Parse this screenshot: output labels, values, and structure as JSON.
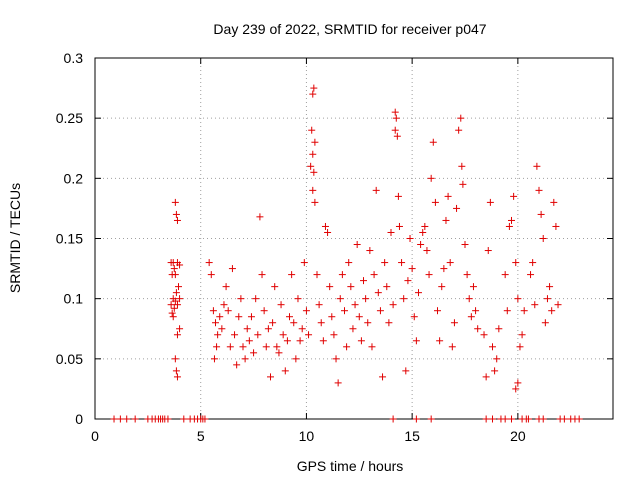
{
  "chart_data": {
    "type": "scatter",
    "title": "Day 239 of 2022, SRMTID for receiver p047",
    "xlabel": "GPS time / hours",
    "ylabel": "SRMTID / TECUs",
    "xlim": [
      0,
      24.5
    ],
    "ylim": [
      0,
      0.3
    ],
    "xticks": [
      0,
      5,
      10,
      15,
      20
    ],
    "xtick_labels": [
      "0",
      "5",
      "10",
      "15",
      "20"
    ],
    "yticks": [
      0,
      0.05,
      0.1,
      0.15,
      0.2,
      0.25,
      0.3
    ],
    "ytick_labels": [
      "0",
      "0.05",
      "0.1",
      "0.15",
      "0.2",
      "0.25",
      "0.3"
    ],
    "grid": true,
    "series": [
      {
        "name": "SRMTID",
        "color": "#e00000",
        "marker": "+",
        "points": [
          [
            0.9,
            0
          ],
          [
            1.2,
            0
          ],
          [
            1.5,
            0
          ],
          [
            1.9,
            0
          ],
          [
            2.5,
            0
          ],
          [
            2.7,
            0
          ],
          [
            2.85,
            0
          ],
          [
            3.0,
            0
          ],
          [
            3.1,
            0
          ],
          [
            3.2,
            0
          ],
          [
            3.3,
            0
          ],
          [
            3.45,
            0
          ],
          [
            3.8,
            0.18
          ],
          [
            3.85,
            0.17
          ],
          [
            3.9,
            0.165
          ],
          [
            3.7,
            0.13
          ],
          [
            3.75,
            0.125
          ],
          [
            3.8,
            0.12
          ],
          [
            3.6,
            0.13
          ],
          [
            3.65,
            0.12
          ],
          [
            3.9,
            0.13
          ],
          [
            4.0,
            0.128
          ],
          [
            3.7,
            0.1
          ],
          [
            3.8,
            0.098
          ],
          [
            3.9,
            0.095
          ],
          [
            3.65,
            0.088
          ],
          [
            3.75,
            0.092
          ],
          [
            3.95,
            0.11
          ],
          [
            3.85,
            0.105
          ],
          [
            4.0,
            0.075
          ],
          [
            3.9,
            0.07
          ],
          [
            3.8,
            0.05
          ],
          [
            3.85,
            0.04
          ],
          [
            3.9,
            0.035
          ],
          [
            3.7,
            0.085
          ],
          [
            4.0,
            0.1
          ],
          [
            3.6,
            0.095
          ],
          [
            4.2,
            0
          ],
          [
            4.5,
            0
          ],
          [
            4.7,
            0
          ],
          [
            4.85,
            0
          ],
          [
            5.0,
            0
          ],
          [
            5.1,
            0
          ],
          [
            5.2,
            0
          ],
          [
            5.4,
            0.13
          ],
          [
            5.5,
            0.12
          ],
          [
            5.6,
            0.09
          ],
          [
            5.7,
            0.08
          ],
          [
            5.8,
            0.07
          ],
          [
            5.9,
            0.085
          ],
          [
            6.0,
            0.075
          ],
          [
            5.75,
            0.06
          ],
          [
            5.65,
            0.05
          ],
          [
            6.1,
            0.095
          ],
          [
            6.2,
            0.11
          ],
          [
            6.3,
            0.09
          ],
          [
            6.4,
            0.06
          ],
          [
            6.5,
            0.125
          ],
          [
            6.6,
            0.07
          ],
          [
            6.7,
            0.045
          ],
          [
            6.8,
            0.085
          ],
          [
            6.9,
            0.1
          ],
          [
            7.0,
            0.06
          ],
          [
            7.1,
            0.05
          ],
          [
            7.2,
            0.075
          ],
          [
            7.3,
            0.065
          ],
          [
            7.4,
            0.085
          ],
          [
            7.5,
            0.055
          ],
          [
            7.6,
            0.1
          ],
          [
            7.7,
            0.07
          ],
          [
            7.8,
            0.168
          ],
          [
            7.9,
            0.12
          ],
          [
            8.0,
            0.09
          ],
          [
            8.1,
            0.06
          ],
          [
            8.2,
            0.075
          ],
          [
            8.3,
            0.035
          ],
          [
            8.4,
            0.08
          ],
          [
            8.5,
            0.11
          ],
          [
            8.6,
            0.06
          ],
          [
            8.7,
            0.055
          ],
          [
            8.8,
            0.095
          ],
          [
            8.9,
            0.07
          ],
          [
            9.0,
            0.04
          ],
          [
            9.1,
            0.065
          ],
          [
            9.2,
            0.085
          ],
          [
            9.3,
            0.12
          ],
          [
            9.4,
            0.08
          ],
          [
            9.5,
            0.05
          ],
          [
            9.6,
            0.1
          ],
          [
            9.7,
            0.065
          ],
          [
            9.8,
            0.075
          ],
          [
            9.9,
            0.13
          ],
          [
            10.0,
            0.09
          ],
          [
            10.1,
            0.07
          ],
          [
            10.3,
            0.27
          ],
          [
            10.35,
            0.275
          ],
          [
            10.25,
            0.24
          ],
          [
            10.4,
            0.23
          ],
          [
            10.3,
            0.22
          ],
          [
            10.2,
            0.21
          ],
          [
            10.35,
            0.205
          ],
          [
            10.3,
            0.19
          ],
          [
            10.4,
            0.18
          ],
          [
            10.5,
            0.12
          ],
          [
            10.6,
            0.095
          ],
          [
            10.7,
            0.08
          ],
          [
            10.8,
            0.065
          ],
          [
            10.9,
            0.16
          ],
          [
            11.0,
            0.155
          ],
          [
            11.1,
            0.11
          ],
          [
            11.2,
            0.085
          ],
          [
            11.3,
            0.07
          ],
          [
            11.4,
            0.05
          ],
          [
            11.5,
            0.03
          ],
          [
            11.6,
            0.1
          ],
          [
            11.7,
            0.12
          ],
          [
            11.8,
            0.09
          ],
          [
            11.9,
            0.06
          ],
          [
            12.0,
            0.13
          ],
          [
            12.1,
            0.11
          ],
          [
            12.2,
            0.075
          ],
          [
            12.3,
            0.095
          ],
          [
            12.4,
            0.145
          ],
          [
            12.5,
            0.085
          ],
          [
            12.6,
            0.065
          ],
          [
            12.7,
            0.115
          ],
          [
            12.8,
            0.1
          ],
          [
            12.9,
            0.08
          ],
          [
            13.0,
            0.14
          ],
          [
            13.1,
            0.06
          ],
          [
            13.2,
            0.12
          ],
          [
            13.3,
            0.19
          ],
          [
            13.4,
            0.105
          ],
          [
            13.5,
            0.09
          ],
          [
            13.6,
            0.035
          ],
          [
            13.7,
            0.13
          ],
          [
            13.8,
            0.11
          ],
          [
            13.9,
            0.08
          ],
          [
            14.0,
            0.155
          ],
          [
            14.1,
            0.095
          ],
          [
            14.2,
            0.255
          ],
          [
            14.25,
            0.25
          ],
          [
            14.3,
            0.235
          ],
          [
            14.2,
            0.24
          ],
          [
            14.35,
            0.185
          ],
          [
            14.4,
            0.16
          ],
          [
            14.5,
            0.13
          ],
          [
            14.6,
            0.1
          ],
          [
            14.7,
            0.04
          ],
          [
            14.8,
            0.115
          ],
          [
            14.9,
            0.15
          ],
          [
            15.0,
            0.125
          ],
          [
            15.1,
            0.085
          ],
          [
            15.2,
            0.065
          ],
          [
            15.3,
            0.105
          ],
          [
            15.4,
            0.145
          ],
          [
            15.5,
            0.155
          ],
          [
            15.6,
            0.16
          ],
          [
            15.7,
            0.14
          ],
          [
            15.8,
            0.12
          ],
          [
            15.9,
            0.2
          ],
          [
            16.0,
            0.23
          ],
          [
            16.1,
            0.18
          ],
          [
            16.2,
            0.09
          ],
          [
            16.3,
            0.065
          ],
          [
            16.4,
            0.11
          ],
          [
            16.5,
            0.125
          ],
          [
            16.6,
            0.165
          ],
          [
            16.7,
            0.185
          ],
          [
            16.8,
            0.13
          ],
          [
            16.9,
            0.06
          ],
          [
            17.0,
            0.08
          ],
          [
            17.1,
            0.175
          ],
          [
            17.2,
            0.24
          ],
          [
            17.3,
            0.25
          ],
          [
            17.35,
            0.21
          ],
          [
            17.4,
            0.195
          ],
          [
            17.5,
            0.145
          ],
          [
            17.6,
            0.12
          ],
          [
            17.7,
            0.1
          ],
          [
            17.8,
            0.085
          ],
          [
            17.9,
            0.11
          ],
          [
            18.0,
            0.09
          ],
          [
            18.1,
            0.075
          ],
          [
            18.4,
            0.07
          ],
          [
            18.5,
            0.035
          ],
          [
            18.6,
            0.14
          ],
          [
            18.7,
            0.18
          ],
          [
            18.8,
            0.06
          ],
          [
            18.9,
            0.04
          ],
          [
            19.0,
            0.05
          ],
          [
            19.1,
            0.075
          ],
          [
            19.4,
            0.12
          ],
          [
            19.5,
            0.09
          ],
          [
            19.6,
            0.16
          ],
          [
            19.7,
            0.165
          ],
          [
            19.8,
            0.185
          ],
          [
            19.9,
            0.13
          ],
          [
            20.0,
            0.1
          ],
          [
            20.1,
            0.06
          ],
          [
            20.0,
            0.03
          ],
          [
            19.9,
            0.025
          ],
          [
            20.2,
            0.07
          ],
          [
            20.3,
            0.09
          ],
          [
            20.6,
            0.12
          ],
          [
            20.7,
            0.13
          ],
          [
            20.8,
            0.095
          ],
          [
            20.9,
            0.21
          ],
          [
            21.0,
            0.19
          ],
          [
            21.1,
            0.17
          ],
          [
            21.2,
            0.15
          ],
          [
            21.3,
            0.08
          ],
          [
            21.4,
            0.1
          ],
          [
            21.5,
            0.11
          ],
          [
            21.6,
            0.09
          ],
          [
            21.7,
            0.18
          ],
          [
            21.8,
            0.16
          ],
          [
            21.9,
            0.095
          ],
          [
            15.2,
            0
          ],
          [
            15.9,
            0
          ],
          [
            14.1,
            0
          ],
          [
            18.5,
            0
          ],
          [
            18.8,
            0
          ],
          [
            19.2,
            0
          ],
          [
            19.4,
            0
          ],
          [
            19.7,
            0
          ],
          [
            20.2,
            0
          ],
          [
            20.4,
            0
          ],
          [
            20.5,
            0
          ],
          [
            21.0,
            0
          ],
          [
            21.2,
            0
          ],
          [
            22.0,
            0
          ],
          [
            22.2,
            0
          ],
          [
            22.5,
            0
          ],
          [
            22.7,
            0
          ],
          [
            22.9,
            0
          ]
        ]
      }
    ]
  }
}
